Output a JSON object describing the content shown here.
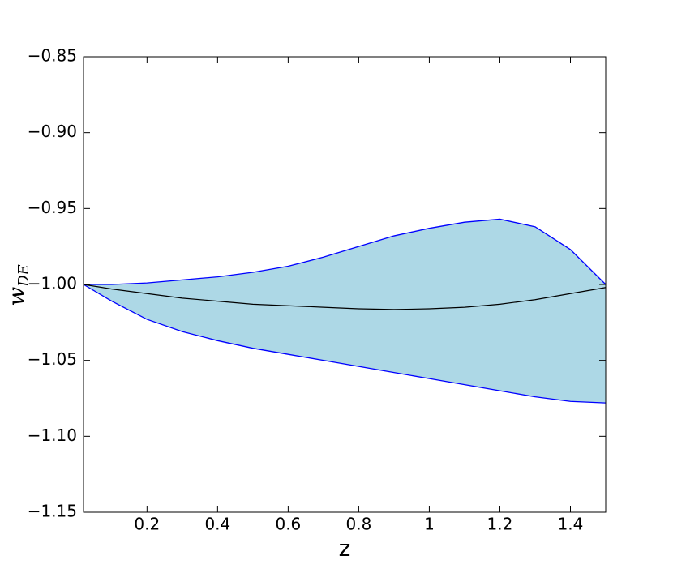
{
  "chart_data": {
    "type": "band",
    "xlabel": "z",
    "ylabel": "w",
    "ylabel_sub": "DE",
    "x": [
      0.02,
      0.1,
      0.2,
      0.3,
      0.4,
      0.5,
      0.6,
      0.7,
      0.8,
      0.9,
      1.0,
      1.1,
      1.2,
      1.3,
      1.4,
      1.5
    ],
    "band": {
      "color": "#add8e6",
      "edge_color": "#0000ff",
      "upper": [
        -1.0,
        -1.0,
        -0.999,
        -0.997,
        -0.995,
        -0.992,
        -0.988,
        -0.982,
        -0.975,
        -0.968,
        -0.963,
        -0.959,
        -0.957,
        -0.962,
        -0.977,
        -1.0
      ],
      "lower": [
        -1.0,
        -1.011,
        -1.023,
        -1.031,
        -1.037,
        -1.042,
        -1.046,
        -1.05,
        -1.054,
        -1.058,
        -1.062,
        -1.066,
        -1.07,
        -1.074,
        -1.077,
        -1.078
      ]
    },
    "series": [
      {
        "color": "#000000",
        "values": [
          -1.0,
          -1.003,
          -1.006,
          -1.009,
          -1.011,
          -1.013,
          -1.014,
          -1.015,
          -1.016,
          -1.0165,
          -1.016,
          -1.015,
          -1.013,
          -1.01,
          -1.006,
          -1.002
        ]
      }
    ],
    "xlim": [
      0.02,
      1.5
    ],
    "ylim": [
      -1.15,
      -0.85
    ],
    "xticks": [
      0.2,
      0.4,
      0.6,
      0.8,
      1.0,
      1.2,
      1.4
    ],
    "yticks": [
      {
        "value": -1.15,
        "label": "−1.15"
      },
      {
        "value": -1.1,
        "label": "−1.10"
      },
      {
        "value": -1.05,
        "label": "−1.05"
      },
      {
        "value": -1.0,
        "label": "−1.00"
      },
      {
        "value": -0.95,
        "label": "−0.95"
      },
      {
        "value": -0.9,
        "label": "−0.90"
      },
      {
        "value": -0.85,
        "label": "−0.85"
      }
    ]
  }
}
